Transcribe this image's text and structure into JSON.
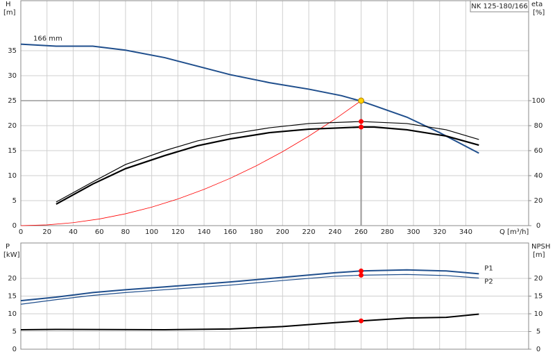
{
  "chart_data": [
    {
      "type": "line",
      "title": "NK 125-180/166",
      "xlabel": "Q [m³/h]",
      "ylabel": "H",
      "yunit": "[m]",
      "y2label": "eta",
      "y2unit": "[%]",
      "xlim": [
        0,
        388
      ],
      "xticks": [
        0,
        20,
        40,
        60,
        80,
        100,
        120,
        140,
        160,
        180,
        200,
        220,
        240,
        260,
        280,
        300,
        320,
        340
      ],
      "ylim": [
        0,
        45
      ],
      "yticks": [
        0,
        5,
        10,
        15,
        20,
        25,
        30,
        35
      ],
      "y2lim": [
        0,
        180
      ],
      "y2ticks": [
        0,
        20,
        40,
        60,
        80,
        100
      ],
      "grid": true,
      "series_label_position": "start",
      "duty_point": {
        "x": 260,
        "y": 25,
        "color": "#ffd000"
      },
      "series": [
        {
          "name": "166 mm",
          "color": "#1f4e8c",
          "width": 2,
          "x": [
            0,
            27,
            55,
            80,
            110,
            135,
            160,
            190,
            220,
            245,
            260,
            270,
            295,
            320,
            350
          ],
          "values": [
            36.3,
            35.9,
            35.9,
            35.1,
            33.6,
            31.9,
            30.2,
            28.6,
            27.3,
            26,
            24.9,
            24,
            21.7,
            18.6,
            14.5
          ]
        },
        {
          "color": "#ff0000",
          "width": 0.8,
          "x": [
            0,
            20,
            40,
            60,
            80,
            100,
            120,
            140,
            160,
            180,
            200,
            220,
            240,
            260
          ],
          "values": [
            0,
            0.15,
            0.59,
            1.33,
            2.37,
            3.7,
            5.33,
            7.25,
            9.47,
            11.98,
            14.79,
            17.9,
            21.3,
            25
          ]
        },
        {
          "color": "#000000",
          "width": 1.2,
          "axis": "y2",
          "x": [
            27,
            55,
            80,
            110,
            135,
            160,
            190,
            220,
            260,
            295,
            325,
            350
          ],
          "values": [
            18.9,
            35,
            48.9,
            60,
            67.8,
            73.3,
            78.3,
            81.7,
            83.3,
            81.7,
            76.7,
            68.9
          ]
        },
        {
          "color": "#000000",
          "width": 2.2,
          "axis": "y2",
          "x": [
            27,
            55,
            80,
            110,
            135,
            160,
            190,
            220,
            260,
            270,
            295,
            325,
            350
          ],
          "values": [
            17.2,
            33.3,
            45.6,
            56.1,
            63.9,
            69.4,
            74.4,
            77.2,
            78.9,
            78.9,
            76.7,
            71.7,
            64.4
          ]
        }
      ]
    },
    {
      "type": "line",
      "ylabel": "P",
      "yunit": "[kW]",
      "y2label": "NPSH",
      "y2unit": "[m]",
      "xlim": [
        0,
        388
      ],
      "xticks": [
        0,
        20,
        40,
        60,
        80,
        100,
        120,
        140,
        160,
        180,
        200,
        220,
        240,
        260,
        280,
        300,
        320,
        340
      ],
      "ylim": [
        0,
        30
      ],
      "yticks": [
        0,
        5,
        10,
        15,
        20
      ],
      "y2lim": [
        0,
        30
      ],
      "y2ticks": [
        0,
        5,
        10,
        15,
        20
      ],
      "grid": true,
      "series_label_position": "end",
      "series": [
        {
          "name": "P1",
          "color": "#1f4e8c",
          "width": 2,
          "x": [
            0,
            27,
            55,
            80,
            110,
            160,
            200,
            240,
            260,
            295,
            325,
            350
          ],
          "values": [
            13.7,
            14.7,
            16,
            16.8,
            17.6,
            19,
            20.3,
            21.6,
            22.1,
            22.4,
            22.1,
            21.3
          ]
        },
        {
          "name": "P2",
          "color": "#1f4e8c",
          "width": 1.2,
          "x": [
            0,
            27,
            55,
            80,
            110,
            160,
            200,
            240,
            260,
            295,
            325,
            350
          ],
          "values": [
            12.7,
            14,
            15.2,
            16,
            16.8,
            18.1,
            19.4,
            20.6,
            20.9,
            21.1,
            20.8,
            20.1
          ]
        },
        {
          "color": "#000000",
          "width": 2,
          "axis": "y2",
          "x": [
            0,
            27,
            110,
            160,
            200,
            240,
            260,
            295,
            325,
            350
          ],
          "values": [
            5.5,
            5.6,
            5.5,
            5.7,
            6.4,
            7.5,
            8,
            8.8,
            9,
            9.9
          ]
        }
      ]
    }
  ]
}
